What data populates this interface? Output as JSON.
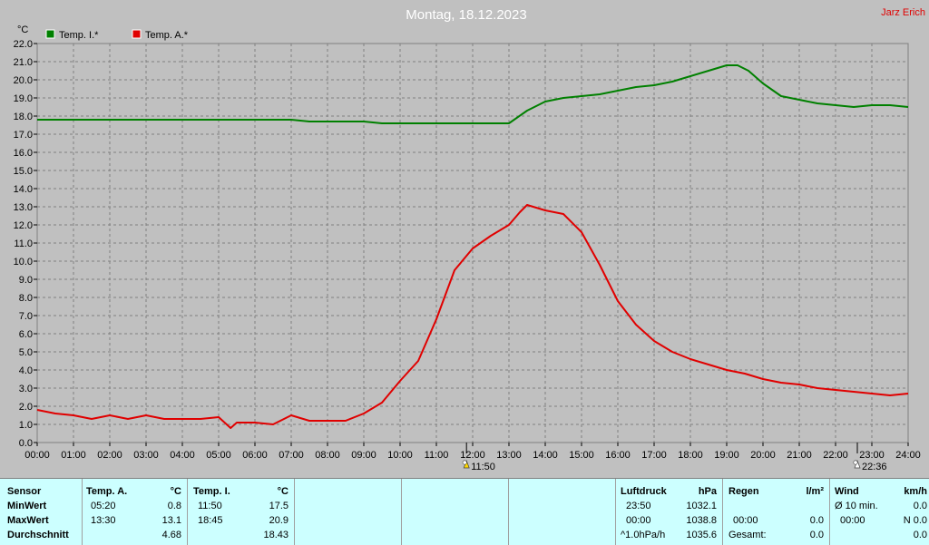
{
  "header": {
    "title": "Montag, 18.12.2023",
    "author": "Jarz Erich"
  },
  "chart_data": {
    "type": "line",
    "title": "Montag, 18.12.2023",
    "ylabel": "°C",
    "ylim": [
      0,
      22
    ],
    "xlim": [
      0,
      24
    ],
    "grid": true,
    "legend_placement": "top-left",
    "y_ticks": [
      "0.0",
      "1.0",
      "2.0",
      "3.0",
      "4.0",
      "5.0",
      "6.0",
      "7.0",
      "8.0",
      "9.0",
      "10.0",
      "11.0",
      "12.0",
      "13.0",
      "14.0",
      "15.0",
      "16.0",
      "17.0",
      "18.0",
      "19.0",
      "20.0",
      "21.0",
      "22.0"
    ],
    "x_ticks": [
      "00:00",
      "01:00",
      "02:00",
      "03:00",
      "04:00",
      "05:00",
      "06:00",
      "07:00",
      "08:00",
      "09:00",
      "10:00",
      "11:00",
      "12:00",
      "13:00",
      "14:00",
      "15:00",
      "16:00",
      "17:00",
      "18:00",
      "19:00",
      "20:00",
      "21:00",
      "22:00",
      "23:00",
      "24:00"
    ],
    "markers": [
      {
        "label": "11:50",
        "x": 11.83,
        "icon": "sunrise-icon"
      },
      {
        "label": "22:36",
        "x": 22.6,
        "icon": "moon-icon"
      }
    ],
    "series": [
      {
        "name": "Temp. I.*",
        "color": "#008000",
        "x": [
          0,
          1,
          2,
          3,
          4,
          5,
          6,
          7,
          7.5,
          8,
          9,
          9.5,
          10,
          11,
          12,
          12.5,
          13,
          13.5,
          14,
          14.5,
          15,
          15.5,
          16,
          16.5,
          17,
          17.5,
          18,
          18.5,
          19,
          19.3,
          19.6,
          20,
          20.5,
          21,
          21.5,
          22,
          22.5,
          23,
          23.5,
          24
        ],
        "y": [
          17.8,
          17.8,
          17.8,
          17.8,
          17.8,
          17.8,
          17.8,
          17.8,
          17.7,
          17.7,
          17.7,
          17.6,
          17.6,
          17.6,
          17.6,
          17.6,
          17.6,
          18.3,
          18.8,
          19.0,
          19.1,
          19.2,
          19.4,
          19.6,
          19.7,
          19.9,
          20.2,
          20.5,
          20.8,
          20.8,
          20.5,
          19.8,
          19.1,
          18.9,
          18.7,
          18.6,
          18.5,
          18.6,
          18.6,
          18.5
        ]
      },
      {
        "name": "Temp. A.*",
        "color": "#e00000",
        "x": [
          0,
          0.5,
          1,
          1.5,
          2,
          2.5,
          3,
          3.5,
          4,
          4.5,
          5,
          5.33,
          5.5,
          6,
          6.5,
          7,
          7.5,
          8,
          8.5,
          9,
          9.5,
          10,
          10.5,
          11,
          11.5,
          12,
          12.5,
          13,
          13.3,
          13.5,
          14,
          14.5,
          15,
          15.5,
          16,
          16.5,
          17,
          17.5,
          18,
          18.5,
          19,
          19.5,
          20,
          20.5,
          21,
          21.5,
          22,
          22.5,
          23,
          23.5,
          24
        ],
        "y": [
          1.8,
          1.6,
          1.5,
          1.3,
          1.5,
          1.3,
          1.5,
          1.3,
          1.3,
          1.3,
          1.4,
          0.8,
          1.1,
          1.1,
          1.0,
          1.5,
          1.2,
          1.2,
          1.2,
          1.6,
          2.2,
          3.4,
          4.5,
          6.8,
          9.5,
          10.7,
          11.4,
          12.0,
          12.7,
          13.1,
          12.8,
          12.6,
          11.6,
          9.8,
          7.8,
          6.5,
          5.6,
          5.0,
          4.6,
          4.3,
          4.0,
          3.8,
          3.5,
          3.3,
          3.2,
          3.0,
          2.9,
          2.8,
          2.7,
          2.6,
          2.7
        ]
      }
    ]
  },
  "stats": {
    "sensor": {
      "header": "Sensor",
      "min": "MinWert",
      "max": "MaxWert",
      "avg": "Durchschnitt"
    },
    "temp_a": {
      "header": "Temp. A.",
      "unit": "°C",
      "min_time": "05:20",
      "min": "0.8",
      "max_time": "13:30",
      "max": "13.1",
      "avg": "4.68"
    },
    "temp_i": {
      "header": "Temp. I.",
      "unit": "°C",
      "min_time": "11:50",
      "min": "17.5",
      "max_time": "18:45",
      "max": "20.9",
      "avg": "18.43"
    },
    "pressure": {
      "header": "Luftdruck",
      "unit": "hPa",
      "min_time": "23:50",
      "min": "1032.1",
      "max_time": "00:00",
      "max": "1038.8",
      "avg_label": "^1.0hPa/h",
      "avg": "1035.6"
    },
    "rain": {
      "header": "Regen",
      "unit": "l/m²",
      "max_time": "00:00",
      "max": "0.0",
      "avg_label": "Gesamt:",
      "avg": "0.0"
    },
    "wind": {
      "header": "Wind",
      "unit": "km/h",
      "min_label": "Ø 10 min.",
      "min": "0.0",
      "max_time": "00:00",
      "max": "N 0.0",
      "avg": "0.0"
    }
  }
}
